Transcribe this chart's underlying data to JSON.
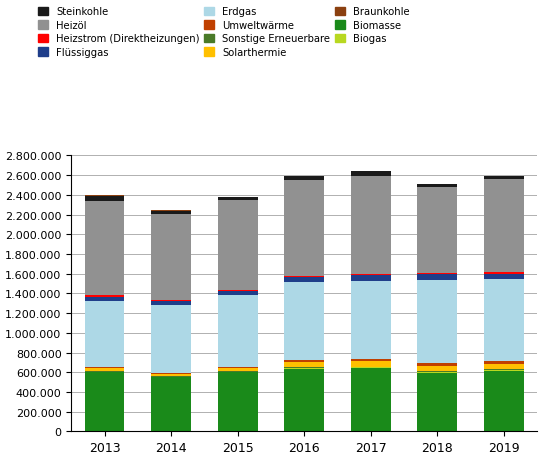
{
  "years": [
    2013,
    2014,
    2015,
    2016,
    2017,
    2018,
    2019
  ],
  "series": {
    "Biomasse": {
      "color": "#1a8a1a",
      "values": [
        600000,
        547000,
        600000,
        638000,
        643000,
        597000,
        617000
      ]
    },
    "Biogas": {
      "color": "#b8d820",
      "values": [
        4000,
        4000,
        4000,
        6000,
        6000,
        6000,
        10000
      ]
    },
    "Sonstige Erneuerbare": {
      "color": "#4a7a28",
      "values": [
        8000,
        7000,
        8000,
        9000,
        9000,
        9000,
        9000
      ]
    },
    "Solarthermie": {
      "color": "#ffc000",
      "values": [
        28000,
        25000,
        30000,
        52000,
        55000,
        52000,
        52000
      ]
    },
    "Umweltwärme": {
      "color": "#c04000",
      "values": [
        15000,
        13000,
        15000,
        17000,
        20000,
        32000,
        25000
      ]
    },
    "Erdgas": {
      "color": "#add8e6",
      "values": [
        670000,
        690000,
        725000,
        790000,
        795000,
        845000,
        830000
      ]
    },
    "Flüssiggas": {
      "color": "#1f3e8a",
      "values": [
        42000,
        38000,
        38000,
        52000,
        55000,
        52000,
        52000
      ]
    },
    "Heizstrom (Direktheizungen)": {
      "color": "#ff0000",
      "values": [
        16000,
        14000,
        14000,
        16000,
        16000,
        16000,
        18000
      ]
    },
    "Heizöl": {
      "color": "#919191",
      "values": [
        955000,
        865000,
        910000,
        970000,
        995000,
        870000,
        945000
      ]
    },
    "Steinkohle": {
      "color": "#1a1a1a",
      "values": [
        52000,
        37000,
        32000,
        42000,
        47000,
        27000,
        32000
      ]
    },
    "Braunkohle": {
      "color": "#8b4010",
      "values": [
        4000,
        3000,
        3000,
        3000,
        3000,
        3000,
        4000
      ]
    }
  },
  "ylim": [
    0,
    2800000
  ],
  "ytick_step": 200000,
  "background_color": "#ffffff",
  "grid_color": "#b0b0b0",
  "legend_order": [
    "Steinkohle",
    "Heizöl",
    "Heizstrom (Direktheizungen)",
    "Flüssiggas",
    "Erdgas",
    "Umweltwärme",
    "Sonstige Erneuerbare",
    "Solarthermie",
    "Braunkohle",
    "Biomasse",
    "Biogas"
  ]
}
